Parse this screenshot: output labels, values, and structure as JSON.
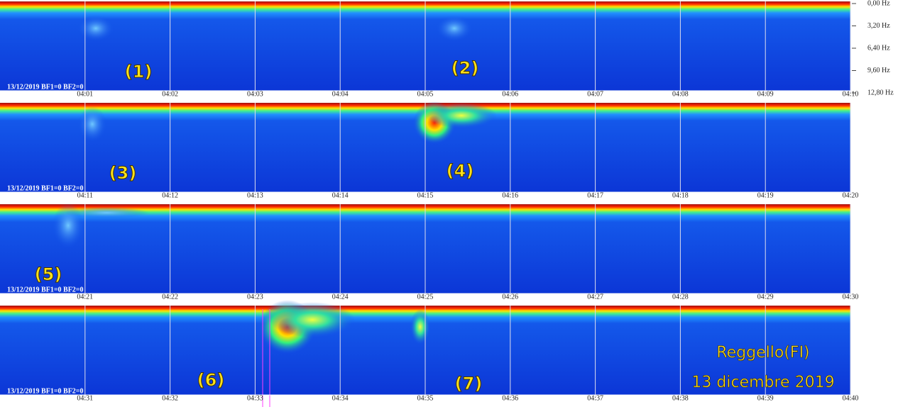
{
  "chart_data": {
    "type": "spectrogram",
    "ylim": [
      0,
      12.8
    ],
    "yticks": [
      {
        "value": 0,
        "label": "0,00 Hz"
      },
      {
        "value": 3.2,
        "label": "3,20 Hz"
      },
      {
        "value": 6.4,
        "label": "6,40 Hz"
      },
      {
        "value": 9.6,
        "label": "9,60 Hz"
      },
      {
        "value": 12.8,
        "label": "12,80 Hz"
      }
    ],
    "strips": [
      {
        "label": "13/12/2019 BF1=0 BF2=0",
        "xticks": [
          "04:01",
          "04:02",
          "04:03",
          "04:04",
          "04:05",
          "04:06",
          "04:07",
          "04:08",
          "04:09",
          "04:10"
        ],
        "annotations": [
          "(1)",
          "(2)"
        ]
      },
      {
        "label": "13/12/2019 BF1=0 BF2=0",
        "xticks": [
          "04:11",
          "04:12",
          "04:13",
          "04:14",
          "04:15",
          "04:16",
          "04:17",
          "04:18",
          "04:19",
          "04:20"
        ],
        "annotations": [
          "(3)",
          "(4)"
        ]
      },
      {
        "label": "13/12/2019 BF1=0 BF2=0",
        "xticks": [
          "04:21",
          "04:22",
          "04:23",
          "04:24",
          "04:25",
          "04:26",
          "04:27",
          "04:28",
          "04:29",
          "04:30"
        ],
        "annotations": [
          "(5)"
        ]
      },
      {
        "label": "13/12/2019 BF1=0 BF2=0",
        "xticks": [
          "04:31",
          "04:32",
          "04:33",
          "04:34",
          "04:35",
          "04:36",
          "04:37",
          "04:38",
          "04:39",
          "04:40"
        ],
        "annotations": [
          "(6)",
          "(7)"
        ]
      }
    ],
    "caption": [
      "Reggello(FI)",
      "13 dicembre 2019"
    ]
  }
}
